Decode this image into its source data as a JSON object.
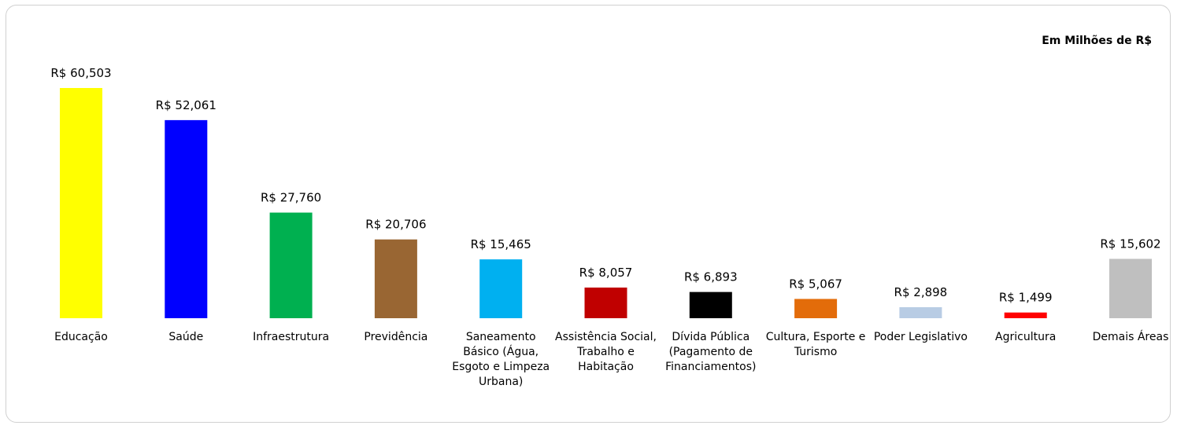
{
  "chart_data": {
    "type": "bar",
    "annotation": "Em Milhões de R$",
    "categories": [
      "Educação",
      "Saúde",
      "Infraestrutura",
      "Previdência",
      "Saneamento Básico (Água, Esgoto e Limpeza Urbana)",
      "Assistência Social, Trabalho e Habitação",
      "Dívida Pública (Pagamento de Financiamentos)",
      "Cultura, Esporte e Turismo",
      "Poder Legislativo",
      "Agricultura",
      "Demais Áreas"
    ],
    "values": [
      60503,
      52061,
      27760,
      20706,
      15465,
      8057,
      6893,
      5067,
      2898,
      1499,
      15602
    ],
    "value_labels": [
      "R$ 60,503",
      "R$ 52,061",
      "R$ 27,760",
      "R$ 20,706",
      "R$ 15,465",
      "R$ 8,057",
      "R$ 6,893",
      "R$ 5,067",
      "R$ 2,898",
      "R$ 1,499",
      "R$ 15,602"
    ],
    "colors": [
      "#ffff00",
      "#0000ff",
      "#00b050",
      "#996633",
      "#00b0f0",
      "#c00000",
      "#000000",
      "#e36c0a",
      "#b8cce4",
      "#ff0000",
      "#bfbfbf"
    ]
  }
}
